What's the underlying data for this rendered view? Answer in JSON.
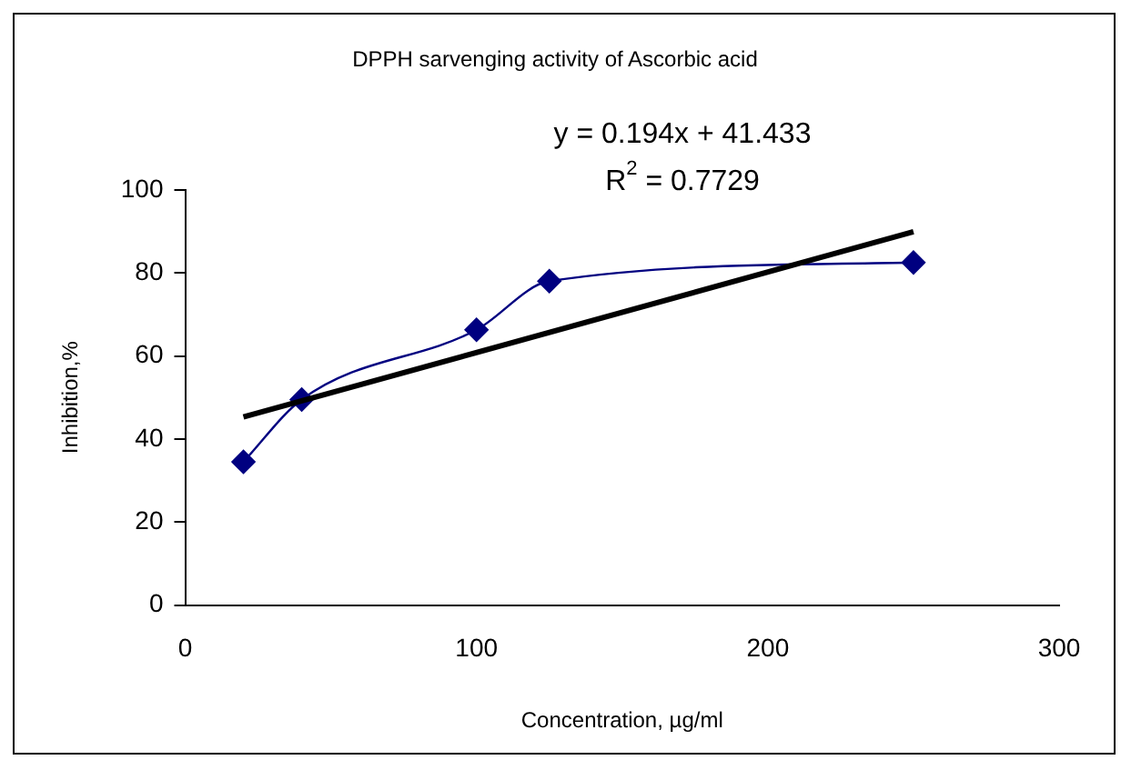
{
  "chart_data": {
    "type": "line",
    "title": "DPPH sarvenging activity of Ascorbic acid",
    "xlabel": "Concentration, µg/ml",
    "ylabel": "Inhibition,%",
    "annotations": [
      "y = 0.194x + 41.433",
      "R$^{2}$ = 0.7729"
    ],
    "series": [
      {
        "color": "#000080",
        "x": [
          20,
          40,
          100,
          125,
          250
        ],
        "values": [
          34.5,
          49.5,
          66.3,
          78,
          82.5
        ],
        "marker": "diamond"
      },
      {
        "type": "line",
        "color": "#000000",
        "x": [
          20,
          250
        ],
        "values": [
          45.3,
          89.9
        ],
        "marker": "none"
      }
    ],
    "xlim": [
      0,
      300
    ],
    "xticks": [
      0,
      100,
      200,
      300
    ],
    "ylim": [
      0,
      100
    ],
    "yticks": [
      0,
      20,
      40,
      60,
      80,
      100
    ],
    "grid": false,
    "legend": false
  }
}
